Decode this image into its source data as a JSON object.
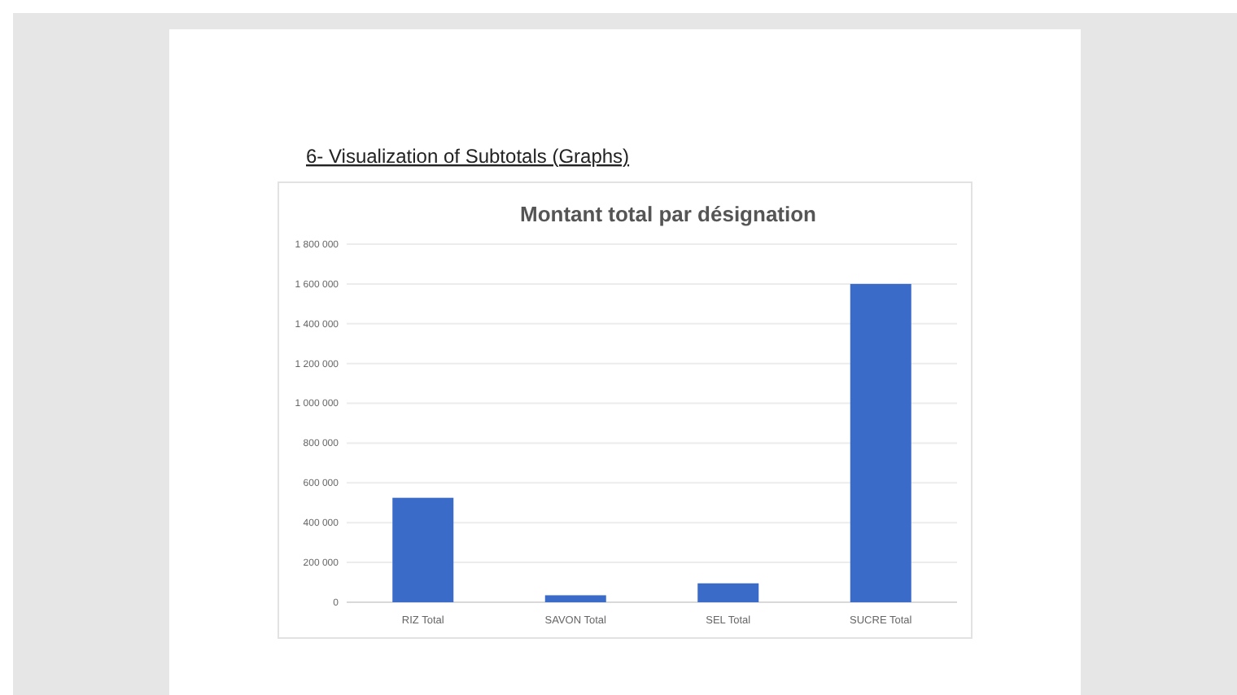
{
  "chart_data": {
    "type": "bar",
    "title": "Montant total par désignation",
    "annotations": [
      "6- Visualization of Subtotals (Graphs)"
    ],
    "categories": [
      "RIZ Total",
      "SAVON Total",
      "SEL Total",
      "SUCRE Total"
    ],
    "values": [
      525000,
      35000,
      95000,
      1600000
    ],
    "color": "#3a6bc9",
    "ylim": [
      0,
      1800000
    ],
    "yticks": [
      {
        "value": 0,
        "label": "0"
      },
      {
        "value": 200000,
        "label": "200 000"
      },
      {
        "value": 400000,
        "label": "400 000"
      },
      {
        "value": 600000,
        "label": "600 000"
      },
      {
        "value": 800000,
        "label": "800 000"
      },
      {
        "value": 1000000,
        "label": "1 000 000"
      },
      {
        "value": 1200000,
        "label": "1 200 000"
      },
      {
        "value": 1400000,
        "label": "1 400 000"
      },
      {
        "value": 1600000,
        "label": "1 600 000"
      },
      {
        "value": 1800000,
        "label": "1 800 000"
      }
    ],
    "grid": "y"
  }
}
